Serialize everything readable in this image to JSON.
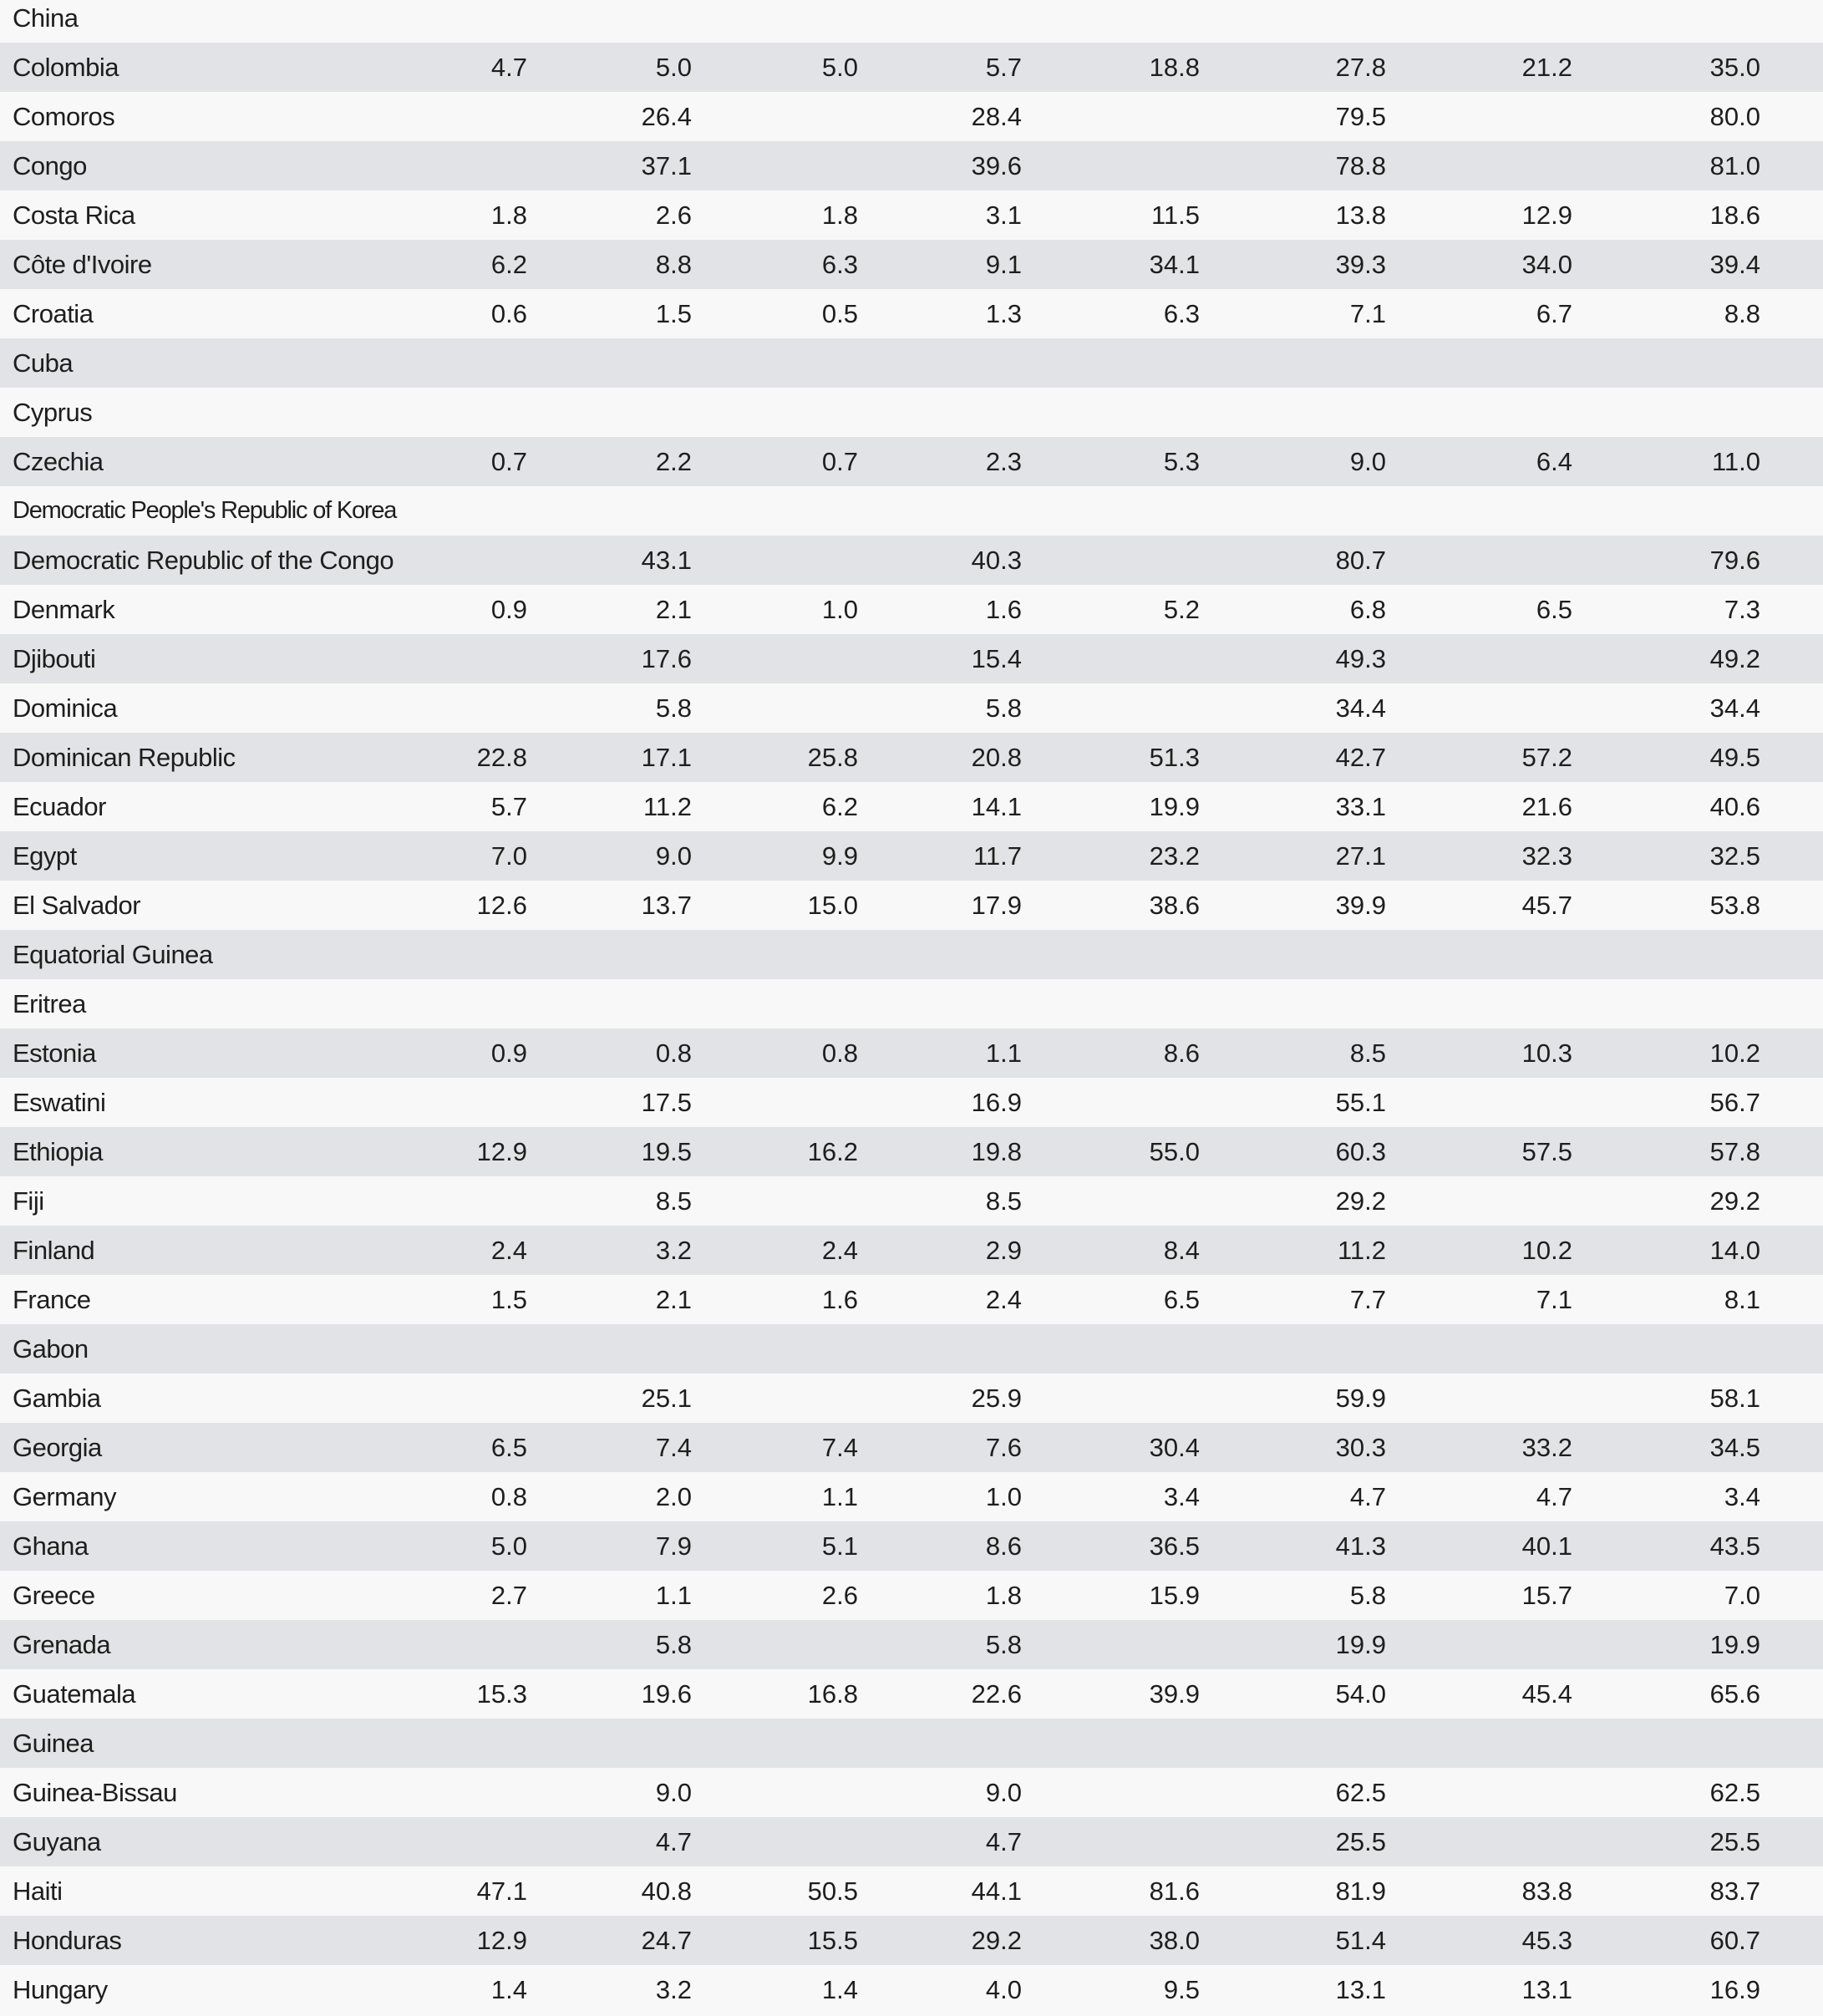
{
  "rows": [
    [
      "China",
      "",
      "",
      "",
      "",
      "",
      "",
      "",
      ""
    ],
    [
      "Colombia",
      "4.7",
      "5.0",
      "5.0",
      "5.7",
      "18.8",
      "27.8",
      "21.2",
      "35.0"
    ],
    [
      "Comoros",
      "",
      "26.4",
      "",
      "28.4",
      "",
      "79.5",
      "",
      "80.0"
    ],
    [
      "Congo",
      "",
      "37.1",
      "",
      "39.6",
      "",
      "78.8",
      "",
      "81.0"
    ],
    [
      "Costa Rica",
      "1.8",
      "2.6",
      "1.8",
      "3.1",
      "11.5",
      "13.8",
      "12.9",
      "18.6"
    ],
    [
      "Côte d'Ivoire",
      "6.2",
      "8.8",
      "6.3",
      "9.1",
      "34.1",
      "39.3",
      "34.0",
      "39.4"
    ],
    [
      "Croatia",
      "0.6",
      "1.5",
      "0.5",
      "1.3",
      "6.3",
      "7.1",
      "6.7",
      "8.8"
    ],
    [
      "Cuba",
      "",
      "",
      "",
      "",
      "",
      "",
      "",
      ""
    ],
    [
      "Cyprus",
      "",
      "",
      "",
      "",
      "",
      "",
      "",
      ""
    ],
    [
      "Czechia",
      "0.7",
      "2.2",
      "0.7",
      "2.3",
      "5.3",
      "9.0",
      "6.4",
      "11.0"
    ],
    [
      "Democratic People's Republic of Korea",
      "",
      "",
      "",
      "",
      "",
      "",
      "",
      ""
    ],
    [
      "Democratic Republic of the Congo",
      "",
      "43.1",
      "",
      "40.3",
      "",
      "80.7",
      "",
      "79.6"
    ],
    [
      "Denmark",
      "0.9",
      "2.1",
      "1.0",
      "1.6",
      "5.2",
      "6.8",
      "6.5",
      "7.3"
    ],
    [
      "Djibouti",
      "",
      "17.6",
      "",
      "15.4",
      "",
      "49.3",
      "",
      "49.2"
    ],
    [
      "Dominica",
      "",
      "5.8",
      "",
      "5.8",
      "",
      "34.4",
      "",
      "34.4"
    ],
    [
      "Dominican Republic",
      "22.8",
      "17.1",
      "25.8",
      "20.8",
      "51.3",
      "42.7",
      "57.2",
      "49.5"
    ],
    [
      "Ecuador",
      "5.7",
      "11.2",
      "6.2",
      "14.1",
      "19.9",
      "33.1",
      "21.6",
      "40.6"
    ],
    [
      "Egypt",
      "7.0",
      "9.0",
      "9.9",
      "11.7",
      "23.2",
      "27.1",
      "32.3",
      "32.5"
    ],
    [
      "El Salvador",
      "12.6",
      "13.7",
      "15.0",
      "17.9",
      "38.6",
      "39.9",
      "45.7",
      "53.8"
    ],
    [
      "Equatorial Guinea",
      "",
      "",
      "",
      "",
      "",
      "",
      "",
      ""
    ],
    [
      "Eritrea",
      "",
      "",
      "",
      "",
      "",
      "",
      "",
      ""
    ],
    [
      "Estonia",
      "0.9",
      "0.8",
      "0.8",
      "1.1",
      "8.6",
      "8.5",
      "10.3",
      "10.2"
    ],
    [
      "Eswatini",
      "",
      "17.5",
      "",
      "16.9",
      "",
      "55.1",
      "",
      "56.7"
    ],
    [
      "Ethiopia",
      "12.9",
      "19.5",
      "16.2",
      "19.8",
      "55.0",
      "60.3",
      "57.5",
      "57.8"
    ],
    [
      "Fiji",
      "",
      "8.5",
      "",
      "8.5",
      "",
      "29.2",
      "",
      "29.2"
    ],
    [
      "Finland",
      "2.4",
      "3.2",
      "2.4",
      "2.9",
      "8.4",
      "11.2",
      "10.2",
      "14.0"
    ],
    [
      "France",
      "1.5",
      "2.1",
      "1.6",
      "2.4",
      "6.5",
      "7.7",
      "7.1",
      "8.1"
    ],
    [
      "Gabon",
      "",
      "",
      "",
      "",
      "",
      "",
      "",
      ""
    ],
    [
      "Gambia",
      "",
      "25.1",
      "",
      "25.9",
      "",
      "59.9",
      "",
      "58.1"
    ],
    [
      "Georgia",
      "6.5",
      "7.4",
      "7.4",
      "7.6",
      "30.4",
      "30.3",
      "33.2",
      "34.5"
    ],
    [
      "Germany",
      "0.8",
      "2.0",
      "1.1",
      "1.0",
      "3.4",
      "4.7",
      "4.7",
      "3.4"
    ],
    [
      "Ghana",
      "5.0",
      "7.9",
      "5.1",
      "8.6",
      "36.5",
      "41.3",
      "40.1",
      "43.5"
    ],
    [
      "Greece",
      "2.7",
      "1.1",
      "2.6",
      "1.8",
      "15.9",
      "5.8",
      "15.7",
      "7.0"
    ],
    [
      "Grenada",
      "",
      "5.8",
      "",
      "5.8",
      "",
      "19.9",
      "",
      "19.9"
    ],
    [
      "Guatemala",
      "15.3",
      "19.6",
      "16.8",
      "22.6",
      "39.9",
      "54.0",
      "45.4",
      "65.6"
    ],
    [
      "Guinea",
      "",
      "",
      "",
      "",
      "",
      "",
      "",
      ""
    ],
    [
      "Guinea-Bissau",
      "",
      "9.0",
      "",
      "9.0",
      "",
      "62.5",
      "",
      "62.5"
    ],
    [
      "Guyana",
      "",
      "4.7",
      "",
      "4.7",
      "",
      "25.5",
      "",
      "25.5"
    ],
    [
      "Haiti",
      "47.1",
      "40.8",
      "50.5",
      "44.1",
      "81.6",
      "81.9",
      "83.8",
      "83.7"
    ],
    [
      "Honduras",
      "12.9",
      "24.7",
      "15.5",
      "29.2",
      "38.0",
      "51.4",
      "45.3",
      "60.7"
    ],
    [
      "Hungary",
      "1.4",
      "3.2",
      "1.4",
      "4.0",
      "9.5",
      "13.1",
      "13.1",
      "16.9"
    ]
  ]
}
